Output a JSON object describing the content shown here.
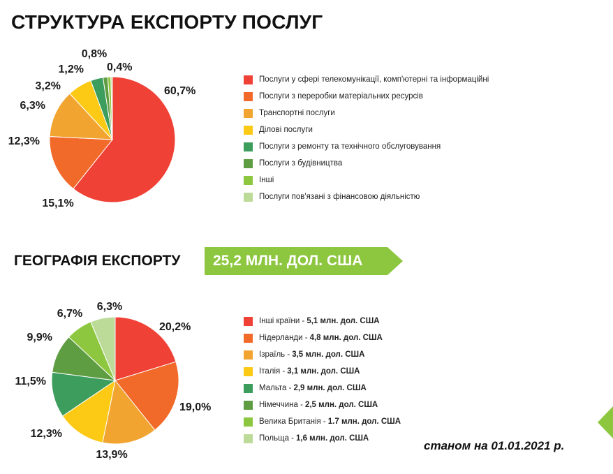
{
  "page": {
    "title": "СТРУКТУРА ЕКСПОРТУ ПОСЛУГ",
    "geo_title": "ГЕОГРАФІЯ ЕКСПОРТУ",
    "total_label": "25,2 МЛН. ДОЛ. США",
    "date_note": "станом на 01.01.2021 р.",
    "accent_color": "#8dc63f"
  },
  "chart_data": [
    {
      "type": "pie",
      "title": "СТРУКТУРА ЕКСПОРТУ ПОСЛУГ",
      "categories": [
        "Послуги у сфері телекомунікації, комп'ютерні та інформаційні",
        "Послуги з переробки матеріальних ресурсів",
        "Транспортні послуги",
        "Ділові послуги",
        "Послуги з ремонту та технічного обслуговування",
        "Послуги з будівництва",
        "Інші",
        "Послуги пов'язані з фінансовою діяльністю"
      ],
      "values": [
        60.7,
        15.1,
        12.3,
        6.3,
        3.2,
        1.2,
        0.8,
        0.4
      ],
      "labels": [
        "60,7%",
        "15,1%",
        "12,3%",
        "6,3%",
        "3,2%",
        "1,2%",
        "0,8%",
        "0,4%"
      ],
      "colors": [
        "#ef4136",
        "#f26a2a",
        "#f2a431",
        "#fcc915",
        "#3c9d5c",
        "#5f9d43",
        "#8dc63f",
        "#bcdb98"
      ],
      "legend_position": "right"
    },
    {
      "type": "pie",
      "title": "ГЕОГРАФІЯ ЕКСПОРТУ",
      "categories": [
        "Інші країни",
        "Нідерланди",
        "Ізраїль",
        "Італія",
        "Мальта",
        "Німеччина",
        "Велика Британія",
        "Польща"
      ],
      "legend_values": [
        "5,1 млн. дол. США",
        "4,8 млн. дол. США",
        "3,5 млн. дол. США",
        "3,1 млн. дол. США",
        "2,9 млн. дол. США",
        "2,5 млн. дол. США",
        "1.7 млн. дол. США",
        "1,6 млн. дол. США"
      ],
      "values": [
        20.2,
        19.0,
        13.9,
        12.3,
        11.5,
        9.9,
        6.7,
        6.3
      ],
      "labels": [
        "20,2%",
        "19,0%",
        "13,9%",
        "12,3%",
        "11,5%",
        "9,9%",
        "6,7%",
        "6,3%"
      ],
      "colors": [
        "#ef4136",
        "#f26a2a",
        "#f2a431",
        "#fcc915",
        "#3c9d5c",
        "#5f9d43",
        "#8dc63f",
        "#bcdb98"
      ],
      "legend_position": "right"
    }
  ]
}
